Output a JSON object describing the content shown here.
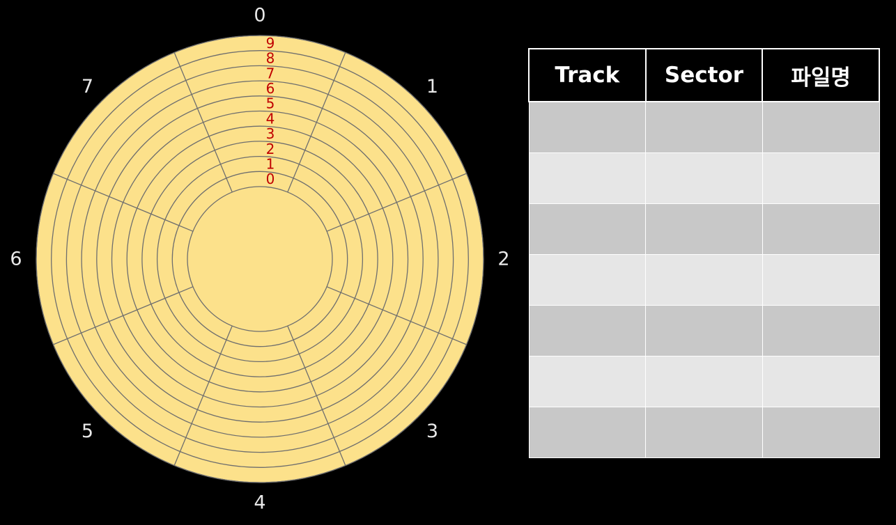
{
  "disk": {
    "sector_labels": [
      "0",
      "1",
      "2",
      "3",
      "4",
      "5",
      "6",
      "7"
    ],
    "track_labels": [
      "0",
      "1",
      "2",
      "3",
      "4",
      "5",
      "6",
      "7",
      "8",
      "9"
    ],
    "colors": {
      "platter": "#fce18b",
      "lines": "#6e6e6e",
      "track_label": "#c00000",
      "sector_label": "#e8e8e8"
    }
  },
  "table": {
    "headers": [
      "Track",
      "Sector",
      "파일명"
    ],
    "rows": [
      [
        "",
        "",
        ""
      ],
      [
        "",
        "",
        ""
      ],
      [
        "",
        "",
        ""
      ],
      [
        "",
        "",
        ""
      ],
      [
        "",
        "",
        ""
      ],
      [
        "",
        "",
        ""
      ],
      [
        "",
        "",
        ""
      ]
    ],
    "colors": {
      "header_bg": "#000000",
      "row_dark": "#c8c8c8",
      "row_light": "#e6e6e6"
    }
  }
}
